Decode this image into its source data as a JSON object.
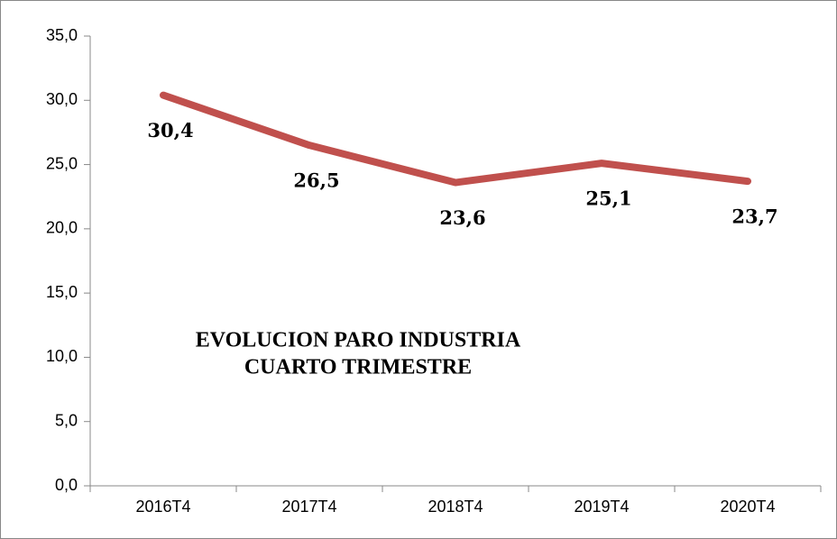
{
  "chart_data": {
    "type": "line",
    "title_lines": [
      "EVOLUCION PARO INDUSTRIA",
      "CUARTO TRIMESTRE"
    ],
    "categories": [
      "2016T4",
      "2017T4",
      "2018T4",
      "2019T4",
      "2020T4"
    ],
    "series": [
      {
        "name": "Paro industria",
        "color": "#c0504d",
        "values": [
          30.4,
          26.5,
          23.6,
          25.1,
          23.7
        ],
        "value_labels": [
          "30,4",
          "26,5",
          "23,6",
          "25,1",
          "23,7"
        ]
      }
    ],
    "ylim": [
      0,
      35
    ],
    "yticks": [
      {
        "value": 0,
        "label": "0,0"
      },
      {
        "value": 5,
        "label": "5,0"
      },
      {
        "value": 10,
        "label": "10,0"
      },
      {
        "value": 15,
        "label": "15,0"
      },
      {
        "value": 20,
        "label": "20,0"
      },
      {
        "value": 25,
        "label": "25,0"
      },
      {
        "value": 30,
        "label": "30,0"
      },
      {
        "value": 35,
        "label": "35,0"
      }
    ],
    "grid": false
  }
}
